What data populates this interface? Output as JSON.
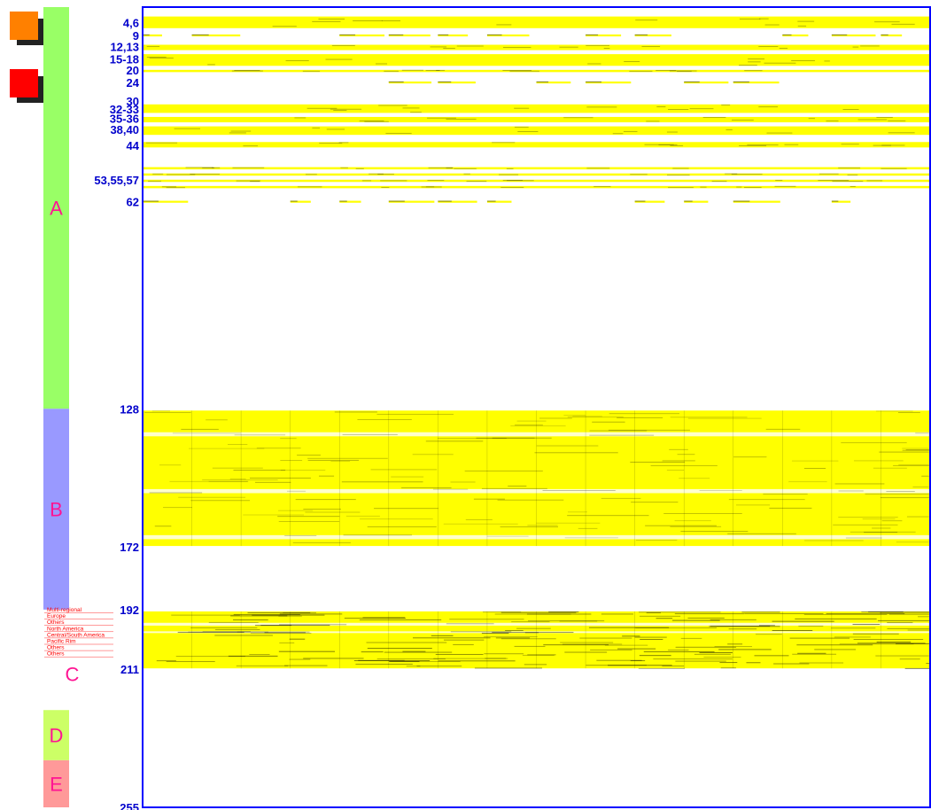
{
  "chart_data": {
    "type": "heatmap",
    "y_range": [
      0,
      255
    ],
    "row_labels": [
      {
        "text": "4,6",
        "row": 5
      },
      {
        "text": "9",
        "row": 9
      },
      {
        "text": "12,13",
        "row": 12.5
      },
      {
        "text": "15-18",
        "row": 16.5
      },
      {
        "text": "20",
        "row": 20
      },
      {
        "text": "24",
        "row": 24
      },
      {
        "text": "30",
        "row": 30
      },
      {
        "text": "32-33",
        "row": 32.5
      },
      {
        "text": "35-36",
        "row": 35.5
      },
      {
        "text": "38,40",
        "row": 39
      },
      {
        "text": "44",
        "row": 44
      },
      {
        "text": "53,55,57",
        "row": 55
      },
      {
        "text": "62",
        "row": 62
      },
      {
        "text": "128",
        "row": 128
      },
      {
        "text": "172",
        "row": 172
      },
      {
        "text": "192",
        "row": 192
      },
      {
        "text": "211",
        "row": 211
      },
      {
        "text": "255",
        "row": 255
      }
    ],
    "groups": [
      {
        "label": "A",
        "start": 0,
        "end": 128,
        "color": "#99ff66"
      },
      {
        "label": "B",
        "start": 128,
        "end": 192,
        "color": "#9999ff"
      },
      {
        "label": "C",
        "start": 192,
        "end": 224,
        "color": "#ffffff"
      },
      {
        "label": "D",
        "start": 224,
        "end": 240,
        "color": "#ccff66"
      },
      {
        "label": "E",
        "start": 240,
        "end": 255,
        "color": "#ff9999"
      }
    ],
    "group_c_sublabels": [
      "Multi-regional",
      "Europe",
      "Others",
      "North America",
      "Central/South America",
      "Pacific Rim",
      "Others",
      "Others"
    ],
    "full_rows": [
      [
        3,
        7
      ],
      [
        12,
        14
      ],
      [
        15,
        19
      ],
      [
        20,
        21
      ],
      [
        31,
        34
      ],
      [
        35,
        37
      ],
      [
        38,
        41
      ],
      [
        43,
        45
      ],
      [
        51,
        52
      ],
      [
        53,
        54
      ],
      [
        55,
        56
      ],
      [
        57,
        58
      ]
    ],
    "partial_rows": [
      9,
      24,
      62
    ],
    "dense_bands": [
      {
        "start": 128,
        "end": 172
      },
      {
        "start": 192,
        "end": 211
      }
    ],
    "column_blocks": 16,
    "colors": {
      "frame": "#0000ff",
      "cell": "#ffff00",
      "dark": "#000000",
      "label": "#0000cc",
      "group_label": "#ff1493",
      "sublabel": "#ff0000",
      "icon_orange": "#ff8000",
      "icon_red": "#ff0000",
      "icon_shadow": "#222222"
    }
  },
  "icons": [
    {
      "name": "orange-square-icon",
      "color": "#ff8000"
    },
    {
      "name": "red-square-icon",
      "color": "#ff0000"
    }
  ]
}
